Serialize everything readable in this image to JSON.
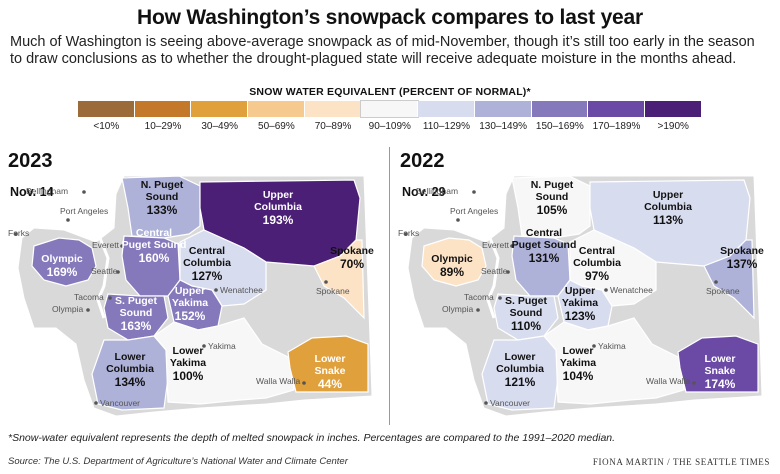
{
  "title": "How Washington’s snowpack compares to last year",
  "subtitle": "Much of Washington is seeing above-average snowpack as of mid-November, though it’s still too early in the season to draw conclusions as to whether the drought-plagued state will receive adequate moisture in the months ahead.",
  "legend": {
    "title": "SNOW WATER EQUIVALENT (PERCENT OF NORMAL)*",
    "bins": [
      {
        "label": "<10%",
        "color": "#9c6b3a"
      },
      {
        "label": "10–29%",
        "color": "#c4782a"
      },
      {
        "label": "30–49%",
        "color": "#e0a03c"
      },
      {
        "label": "50–69%",
        "color": "#f6c98f"
      },
      {
        "label": "70–89%",
        "color": "#fde3c6"
      },
      {
        "label": "90–109%",
        "color": "#f7f7f7"
      },
      {
        "label": "110–129%",
        "color": "#d8dcef"
      },
      {
        "label": "130–149%",
        "color": "#aeb2d8"
      },
      {
        "label": "150–169%",
        "color": "#8579bb"
      },
      {
        "label": "170–189%",
        "color": "#6a4aa5"
      },
      {
        "label": ">190%",
        "color": "#4b1f75"
      }
    ]
  },
  "cities": [
    "Bellingham",
    "Port Angeles",
    "Forks",
    "Everett",
    "Seattle",
    "Tacoma",
    "Olympia",
    "Wenatchee",
    "Spokane",
    "Yakima",
    "Walla Walla",
    "Vancouver"
  ],
  "maps": [
    {
      "year": "2023",
      "date": "Nov. 14",
      "regions": [
        {
          "name": "Olympic",
          "value": "169%",
          "pct": 169
        },
        {
          "name": "N. Puget Sound",
          "value": "133%",
          "pct": 133
        },
        {
          "name": "Central Puget Sound",
          "value": "160%",
          "pct": 160
        },
        {
          "name": "S. Puget Sound",
          "value": "163%",
          "pct": 163
        },
        {
          "name": "Upper Columbia",
          "value": "193%",
          "pct": 193
        },
        {
          "name": "Central Columbia",
          "value": "127%",
          "pct": 127
        },
        {
          "name": "Upper Yakima",
          "value": "152%",
          "pct": 152
        },
        {
          "name": "Spokane",
          "value": "70%",
          "pct": 70
        },
        {
          "name": "Lower Columbia",
          "value": "134%",
          "pct": 134
        },
        {
          "name": "Lower Yakima",
          "value": "100%",
          "pct": 100
        },
        {
          "name": "Lower Snake",
          "value": "44%",
          "pct": 44
        }
      ]
    },
    {
      "year": "2022",
      "date": "Nov. 29",
      "regions": [
        {
          "name": "Olympic",
          "value": "89%",
          "pct": 89
        },
        {
          "name": "N. Puget Sound",
          "value": "105%",
          "pct": 105
        },
        {
          "name": "Central Puget Sound",
          "value": "131%",
          "pct": 131
        },
        {
          "name": "S. Puget Sound",
          "value": "110%",
          "pct": 110
        },
        {
          "name": "Upper Columbia",
          "value": "113%",
          "pct": 113
        },
        {
          "name": "Central Columbia",
          "value": "97%",
          "pct": 97
        },
        {
          "name": "Upper Yakima",
          "value": "123%",
          "pct": 123
        },
        {
          "name": "Spokane",
          "value": "137%",
          "pct": 137
        },
        {
          "name": "Lower Columbia",
          "value": "121%",
          "pct": 121
        },
        {
          "name": "Lower Yakima",
          "value": "104%",
          "pct": 104
        },
        {
          "name": "Lower Snake",
          "value": "174%",
          "pct": 174
        }
      ]
    }
  ],
  "footnote": "*Snow-water equivalent represents the depth of melted snowpack in inches. Percentages are compared to the 1991–2020 median.",
  "source": "Source: The U.S. Department of Agriculture’s National Water and Climate Center",
  "credit": "FIONA MARTIN / THE SEATTLE TIMES"
}
